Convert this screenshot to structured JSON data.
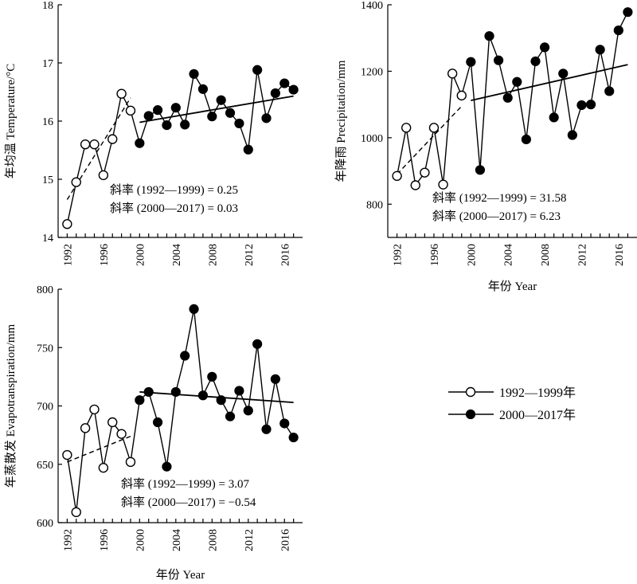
{
  "chart_data": [
    {
      "id": "temp",
      "type": "line",
      "xlabel": "",
      "ylabel": "年均温 Temperature/°C",
      "ylim": [
        14,
        18
      ],
      "yticks": [
        14,
        15,
        16,
        17,
        18
      ],
      "xlim": [
        1991,
        2018
      ],
      "xticks": [
        1992,
        1996,
        2000,
        2004,
        2008,
        2012,
        2016
      ],
      "series": [
        {
          "name": "1992—1999年",
          "x": [
            1992,
            1993,
            1994,
            1995,
            1996,
            1997,
            1998,
            1999
          ],
          "values": [
            14.23,
            14.95,
            15.6,
            15.6,
            15.07,
            15.69,
            16.47,
            16.18
          ]
        },
        {
          "name": "2000—2017年",
          "x": [
            2000,
            2001,
            2002,
            2003,
            2004,
            2005,
            2006,
            2007,
            2008,
            2009,
            2010,
            2011,
            2012,
            2013,
            2014,
            2015,
            2016,
            2017
          ],
          "values": [
            15.62,
            16.09,
            16.19,
            15.93,
            16.23,
            15.94,
            16.81,
            16.55,
            16.08,
            16.36,
            16.14,
            15.96,
            15.51,
            16.88,
            16.05,
            16.48,
            16.65,
            16.54
          ]
        }
      ],
      "trends": [
        {
          "x": [
            1992,
            1999
          ],
          "y": [
            14.65,
            16.4
          ],
          "style": "dashed"
        },
        {
          "x": [
            2000,
            2017
          ],
          "y": [
            15.98,
            16.43
          ],
          "style": "solid"
        }
      ],
      "annotations": [
        "斜率 (1992—1999) = 0.25",
        "斜率 (2000—2017) = 0.03"
      ]
    },
    {
      "id": "prec",
      "type": "line",
      "xlabel": "年份 Year",
      "ylabel": "年降雨 Precipitation/mm",
      "ylim": [
        700,
        1400
      ],
      "yticks": [
        800,
        1000,
        1200,
        1400
      ],
      "xlim": [
        1991,
        2018
      ],
      "xticks": [
        1992,
        1996,
        2000,
        2004,
        2008,
        2012,
        2016
      ],
      "series": [
        {
          "name": "1992—1999年",
          "x": [
            1992,
            1993,
            1994,
            1995,
            1996,
            1997,
            1998,
            1999
          ],
          "values": [
            885,
            1030,
            857,
            895,
            1030,
            859,
            1193,
            1127
          ]
        },
        {
          "name": "2000—2017年",
          "x": [
            2000,
            2001,
            2002,
            2003,
            2004,
            2005,
            2006,
            2007,
            2008,
            2009,
            2010,
            2011,
            2012,
            2013,
            2014,
            2015,
            2016,
            2017
          ],
          "values": [
            1228,
            903,
            1306,
            1233,
            1120,
            1168,
            995,
            1230,
            1272,
            1061,
            1193,
            1008,
            1098,
            1100,
            1265,
            1140,
            1323,
            1378
          ]
        }
      ],
      "trends": [
        {
          "x": [
            1992,
            1999
          ],
          "y": [
            890,
            1095
          ],
          "style": "dashed"
        },
        {
          "x": [
            2000,
            2017
          ],
          "y": [
            1112,
            1220
          ],
          "style": "solid"
        }
      ],
      "annotations": [
        "斜率 (1992—1999) = 31.58",
        "斜率 (2000—2017) = 6.23"
      ]
    },
    {
      "id": "evap",
      "type": "line",
      "xlabel": "年份 Year",
      "ylabel": "年蒸散发 Evapotranspiration/mm",
      "ylim": [
        600,
        800
      ],
      "yticks": [
        600,
        650,
        700,
        750,
        800
      ],
      "xlim": [
        1991,
        2018
      ],
      "xticks": [
        1992,
        1996,
        2000,
        2004,
        2008,
        2012,
        2016
      ],
      "series": [
        {
          "name": "1992—1999年",
          "x": [
            1992,
            1993,
            1994,
            1995,
            1996,
            1997,
            1998,
            1999
          ],
          "values": [
            658,
            609,
            681,
            697,
            647,
            686,
            676,
            652
          ]
        },
        {
          "name": "2000—2017年",
          "x": [
            2000,
            2001,
            2002,
            2003,
            2004,
            2005,
            2006,
            2007,
            2008,
            2009,
            2010,
            2011,
            2012,
            2013,
            2014,
            2015,
            2016,
            2017
          ],
          "values": [
            705,
            712,
            686,
            648,
            712,
            743,
            783,
            709,
            725,
            705,
            691,
            713,
            696,
            753,
            680,
            723,
            685,
            673
          ]
        }
      ],
      "trends": [
        {
          "x": [
            1992,
            1999
          ],
          "y": [
            652,
            674
          ],
          "style": "dashed"
        },
        {
          "x": [
            2000,
            2017
          ],
          "y": [
            712,
            703
          ],
          "style": "solid"
        }
      ],
      "annotations": [
        "斜率 (1992—1999) = 3.07",
        "斜率 (2000—2017) = −0.54"
      ]
    }
  ],
  "legend": {
    "open_label": "1992—1999年",
    "filled_label": "2000—2017年"
  }
}
